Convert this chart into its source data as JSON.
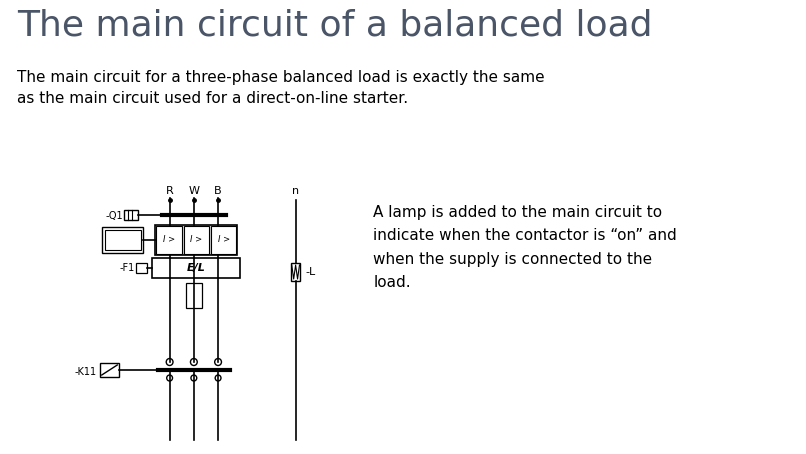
{
  "title": "The main circuit of a balanced load",
  "subtitle": "The main circuit for a three-phase balanced load is exactly the same\nas the main circuit used for a direct-on-line starter.",
  "annotation": "A lamp is added to the main circuit to\nindicate when the contactor is “on” and\nwhen the supply is connected to the\nload.",
  "background_color": "#ffffff",
  "title_color": "#4a5568",
  "text_color": "#000000",
  "title_fontsize": 26,
  "body_fontsize": 11,
  "circuit_fontsize": 7,
  "label_R": "R",
  "label_W": "W",
  "label_B": "B",
  "label_n": "n",
  "label_L": "-L",
  "label_Q1": "-Q1",
  "label_F1": "-F1",
  "label_K11": "-K11",
  "label_EL": "E/L",
  "label_I": "I >"
}
